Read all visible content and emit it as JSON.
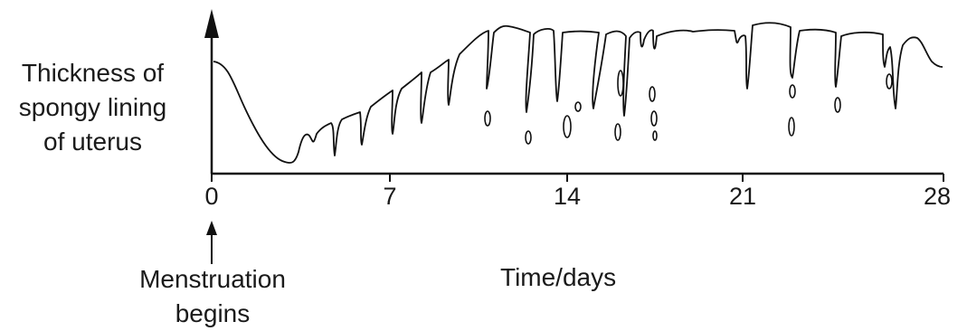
{
  "y_label_lines": [
    "Thickness of",
    "spongy lining",
    "of uterus"
  ],
  "x_label": "Time/days",
  "x_ticks": [
    "0",
    "7",
    "14",
    "21",
    "28"
  ],
  "annotation_lines": [
    "Menstruation",
    "begins"
  ]
}
